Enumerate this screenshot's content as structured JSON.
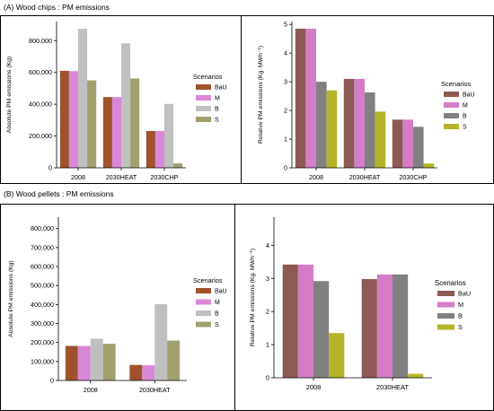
{
  "sections": {
    "a_title": "(A)  Wood chips : PM emissions",
    "b_title": "(B)  Wood pellets : PM emissions"
  },
  "colors": {
    "BaU": "#A0522D",
    "M": "#D988D8",
    "B": "#C0C0C0",
    "S": "#A3A070"
  },
  "colors_right": {
    "BaU": "#8C5A52",
    "M": "#D57CC8",
    "B": "#808080",
    "S": "#B4B42A"
  },
  "chart_data": [
    {
      "type": "bar",
      "panel": "A-left",
      "categories": [
        "2008",
        "2030HEAT",
        "2030CHP"
      ],
      "series": [
        {
          "name": "BaU",
          "values": [
            610000,
            445000,
            232000
          ]
        },
        {
          "name": "M",
          "values": [
            608000,
            445000,
            232000
          ]
        },
        {
          "name": "B",
          "values": [
            875000,
            782000,
            402000
          ]
        },
        {
          "name": "S",
          "values": [
            550000,
            562000,
            28000
          ]
        }
      ],
      "ylabel": "Absolute PM emissions (Kg)",
      "ylim": [
        0,
        920000
      ],
      "yticks": [
        0,
        200000,
        400000,
        600000,
        800000
      ],
      "ytick_labels": [
        "0",
        "200,000",
        "400,000",
        "600,000",
        "800,000"
      ],
      "legend_title": "Scenarios",
      "legend_position": "right"
    },
    {
      "type": "bar",
      "panel": "A-right",
      "categories": [
        "2008",
        "2030HEAT",
        "2030CHP"
      ],
      "series": [
        {
          "name": "BaU",
          "values": [
            4.85,
            3.1,
            1.68
          ]
        },
        {
          "name": "M",
          "values": [
            4.85,
            3.1,
            1.68
          ]
        },
        {
          "name": "B",
          "values": [
            3.0,
            2.63,
            1.43
          ]
        },
        {
          "name": "S",
          "values": [
            2.7,
            1.96,
            0.15
          ]
        }
      ],
      "ylabel": "Relative PM emissions (Kg. MWh⁻¹)",
      "ylim": [
        0,
        5.1
      ],
      "yticks": [
        0,
        1,
        2,
        3,
        4,
        5
      ],
      "ytick_labels": [
        "0",
        "1",
        "2",
        "3",
        "4",
        "5"
      ],
      "legend_title": "Scenarios",
      "legend_position": "right"
    },
    {
      "type": "bar",
      "panel": "B-left",
      "categories": [
        "2008",
        "2030HEAT"
      ],
      "series": [
        {
          "name": "BaU",
          "values": [
            182000,
            82000
          ]
        },
        {
          "name": "M",
          "values": [
            182000,
            80000
          ]
        },
        {
          "name": "B",
          "values": [
            220000,
            402000
          ]
        },
        {
          "name": "S",
          "values": [
            193000,
            210000
          ]
        }
      ],
      "ylabel": "Absolute PM emissions (Kg)",
      "ylim": [
        0,
        860000
      ],
      "yticks": [
        0,
        100000,
        200000,
        300000,
        400000,
        500000,
        600000,
        700000,
        800000
      ],
      "ytick_labels": [
        "0",
        "100,000",
        "200,000",
        "300,000",
        "400,000",
        "500,000",
        "600,000",
        "700,000",
        "800,000"
      ],
      "legend_title": "Scenarios",
      "legend_position": "right"
    },
    {
      "type": "bar",
      "panel": "B-right",
      "categories": [
        "2008",
        "2030HEAT"
      ],
      "series": [
        {
          "name": "BaU",
          "values": [
            3.42,
            2.98
          ]
        },
        {
          "name": "M",
          "values": [
            3.42,
            3.12
          ]
        },
        {
          "name": "B",
          "values": [
            2.92,
            3.12
          ]
        },
        {
          "name": "S",
          "values": [
            1.35,
            0.12
          ]
        }
      ],
      "ylabel": "Relative PM emissions (Kg. MWh⁻¹)",
      "ylim": [
        0,
        4.85
      ],
      "yticks": [
        0,
        1,
        2,
        3,
        4
      ],
      "ytick_labels": [
        "0",
        "1",
        "2",
        "3",
        "4"
      ],
      "legend_title": "Scenarios",
      "legend_position": "right"
    }
  ]
}
